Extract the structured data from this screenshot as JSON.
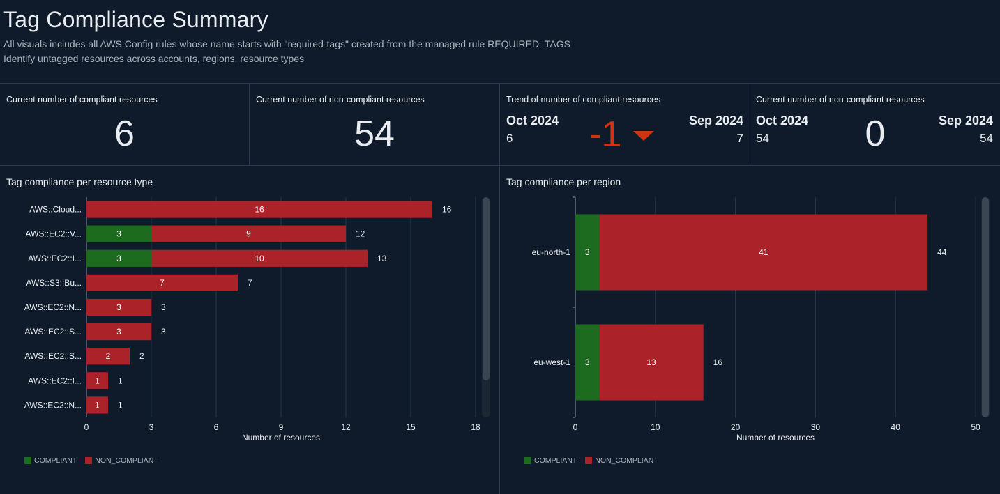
{
  "header": {
    "title": "Tag Compliance Summary",
    "subtitle1": "All visuals includes all AWS Config rules whose name starts with \"required-tags\" created from the managed rule REQUIRED_TAGS",
    "subtitle2": "Identify untagged resources across accounts, regions, resource types"
  },
  "kpis": {
    "compliant": {
      "label": "Current number of compliant resources",
      "value": "6"
    },
    "non_compliant": {
      "label": "Current number of non-compliant resources",
      "value": "54"
    },
    "trend": {
      "label": "Trend of number of compliant resources",
      "current_period": "Oct 2024",
      "current_value": "6",
      "delta": "-1",
      "prior_period": "Sep 2024",
      "prior_value": "7"
    },
    "non_compliant_trend": {
      "label": "Current number of non-compliant resources",
      "current_period": "Oct 2024",
      "current_value": "54",
      "delta": "0",
      "prior_period": "Sep 2024",
      "prior_value": "54"
    }
  },
  "colors": {
    "compliant": "#1d6b1f",
    "non_compliant": "#ab2328",
    "delta_down": "#d13212"
  },
  "legend": {
    "compliant": "COMPLIANT",
    "non_compliant": "NON_COMPLIANT"
  },
  "chart_data": [
    {
      "type": "bar",
      "orientation": "horizontal",
      "stacked": true,
      "title": "Tag compliance per resource type",
      "xlabel": "Number of resources",
      "ylabel": "",
      "xlim": [
        0,
        18
      ],
      "xticks": [
        0,
        3,
        6,
        9,
        12,
        15,
        18
      ],
      "grid": true,
      "legend": "bottom-left",
      "categories": [
        "AWS::Cloud...",
        "AWS::EC2::V...",
        "AWS::EC2::I...",
        "AWS::S3::Bu...",
        "AWS::EC2::N...",
        "AWS::EC2::S...",
        "AWS::EC2::S...",
        "AWS::EC2::I...",
        "AWS::EC2::N..."
      ],
      "series": [
        {
          "name": "COMPLIANT",
          "values": [
            0,
            3,
            3,
            0,
            0,
            0,
            0,
            0,
            0
          ]
        },
        {
          "name": "NON_COMPLIANT",
          "values": [
            16,
            9,
            10,
            7,
            3,
            3,
            2,
            1,
            1
          ]
        }
      ],
      "totals": [
        16,
        12,
        13,
        7,
        3,
        3,
        2,
        1,
        1
      ]
    },
    {
      "type": "bar",
      "orientation": "horizontal",
      "stacked": true,
      "title": "Tag compliance per region",
      "xlabel": "Number of resources",
      "ylabel": "",
      "xlim": [
        0,
        50
      ],
      "xticks": [
        0,
        10,
        20,
        30,
        40,
        50
      ],
      "grid": true,
      "legend": "bottom-left",
      "categories": [
        "eu-north-1",
        "eu-west-1"
      ],
      "series": [
        {
          "name": "COMPLIANT",
          "values": [
            3,
            3
          ]
        },
        {
          "name": "NON_COMPLIANT",
          "values": [
            41,
            13
          ]
        }
      ],
      "totals": [
        44,
        16
      ]
    }
  ]
}
